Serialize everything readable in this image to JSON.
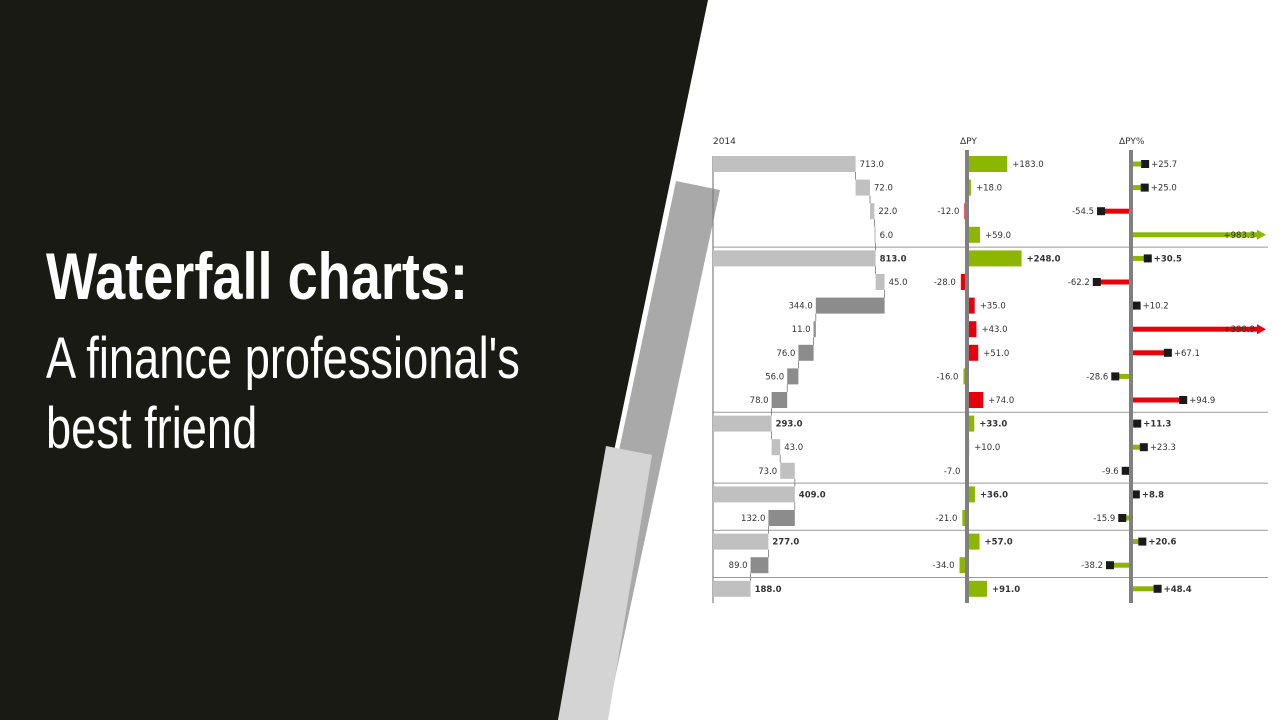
{
  "title": "Waterfall charts:",
  "subtitle_lines": [
    "A finance professional's",
    "best friend"
  ],
  "colors": {
    "dark_panel": "#1a1a14",
    "stripe_dark": "#a9a9a9",
    "stripe_light": "#d4d4d4",
    "positive": "#8db600",
    "negative": "#e8000b",
    "bar_light": "#c0c0c0",
    "bar_dark": "#8c8c8c",
    "axis": "#808080",
    "marker": "#1a1a1a"
  },
  "chart_data": {
    "type": "bar",
    "columns": [
      "2014",
      "ΔPY",
      "ΔPY%"
    ],
    "rows": [
      {
        "value": 713.0,
        "label": "713.0",
        "kind": "step",
        "start": 0,
        "end": 713,
        "shade": "light",
        "dpy": 183.0,
        "dpy_label": "+183.0",
        "dpct": 25.7,
        "dpct_label": "+25.7"
      },
      {
        "value": 72.0,
        "label": "72.0",
        "kind": "step",
        "start": 713,
        "end": 785,
        "shade": "light",
        "dpy": 18.0,
        "dpy_label": "+18.0",
        "dpct": 25.0,
        "dpct_label": "+25.0"
      },
      {
        "value": 22.0,
        "label": "22.0",
        "kind": "step",
        "start": 785,
        "end": 807,
        "shade": "light",
        "dpy": -12.0,
        "dpy_label": "-12.0",
        "dpct": -54.5,
        "dpct_label": "-54.5"
      },
      {
        "value": 6.0,
        "label": "6.0",
        "kind": "step",
        "start": 807,
        "end": 813,
        "shade": "light",
        "dpy": 59.0,
        "dpy_label": "+59.0",
        "dpct": 983.3,
        "dpct_label": "+983.3",
        "dpct_clipped": true
      },
      {
        "value": 813.0,
        "label": "813.0",
        "kind": "total",
        "start": 0,
        "end": 813,
        "shade": "light",
        "dpy": 248.0,
        "dpy_label": "+248.0",
        "dpct": 30.5,
        "dpct_label": "+30.5",
        "separator": true
      },
      {
        "value": 45.0,
        "label": "45.0",
        "kind": "step",
        "start": 813,
        "end": 858,
        "shade": "light",
        "dpy": -28.0,
        "dpy_label": "-28.0",
        "dpct": -62.2,
        "dpct_label": "-62.2"
      },
      {
        "value": 344.0,
        "label": "344.0",
        "kind": "step",
        "start": 858,
        "end": 514,
        "shade": "dark",
        "dpy": 35.0,
        "dpy_label": "+35.0",
        "dpct": 10.2,
        "dpct_label": "+10.2",
        "inverted": true
      },
      {
        "value": 11.0,
        "label": "11.0",
        "kind": "step",
        "start": 514,
        "end": 503,
        "shade": "dark",
        "dpy": 43.0,
        "dpy_label": "+43.0",
        "dpct": 390.9,
        "dpct_label": "+390.9",
        "inverted": true,
        "dpct_clipped": true
      },
      {
        "value": 76.0,
        "label": "76.0",
        "kind": "step",
        "start": 503,
        "end": 427,
        "shade": "dark",
        "dpy": 51.0,
        "dpy_label": "+51.0",
        "dpct": 67.1,
        "dpct_label": "+67.1",
        "inverted": true
      },
      {
        "value": 56.0,
        "label": "56.0",
        "kind": "step",
        "start": 427,
        "end": 371,
        "shade": "dark",
        "dpy": -16.0,
        "dpy_label": "-16.0",
        "dpct": -28.6,
        "dpct_label": "-28.6",
        "inverted": true
      },
      {
        "value": 78.0,
        "label": "78.0",
        "kind": "step",
        "start": 371,
        "end": 293,
        "shade": "dark",
        "dpy": 74.0,
        "dpy_label": "+74.0",
        "dpct": 94.9,
        "dpct_label": "+94.9",
        "inverted": true
      },
      {
        "value": 293.0,
        "label": "293.0",
        "kind": "total",
        "start": 0,
        "end": 293,
        "shade": "light",
        "dpy": 33.0,
        "dpy_label": "+33.0",
        "dpct": 11.3,
        "dpct_label": "+11.3",
        "separator": true
      },
      {
        "value": 43.0,
        "label": "43.0",
        "kind": "step",
        "start": 293,
        "end": 336,
        "shade": "light",
        "dpy": 10.0,
        "dpy_label": "+10.0",
        "dpct": 23.3,
        "dpct_label": "+23.3"
      },
      {
        "value": 73.0,
        "label": "73.0",
        "kind": "step",
        "start": 336,
        "end": 409,
        "shade": "light",
        "dpy": -7.0,
        "dpy_label": "-7.0",
        "dpct": -9.6,
        "dpct_label": "-9.6",
        "inverted": true
      },
      {
        "value": 409.0,
        "label": "409.0",
        "kind": "total",
        "start": 0,
        "end": 409,
        "shade": "light",
        "dpy": 36.0,
        "dpy_label": "+36.0",
        "dpct": 8.8,
        "dpct_label": "+8.8",
        "separator": true
      },
      {
        "value": 132.0,
        "label": "132.0",
        "kind": "step",
        "start": 409,
        "end": 277,
        "shade": "dark",
        "dpy": -21.0,
        "dpy_label": "-21.0",
        "dpct": -15.9,
        "dpct_label": "-15.9",
        "inverted": true
      },
      {
        "value": 277.0,
        "label": "277.0",
        "kind": "total",
        "start": 0,
        "end": 277,
        "shade": "light",
        "dpy": 57.0,
        "dpy_label": "+57.0",
        "dpct": 20.6,
        "dpct_label": "+20.6",
        "separator": true
      },
      {
        "value": 89.0,
        "label": "89.0",
        "kind": "step",
        "start": 277,
        "end": 188,
        "shade": "dark",
        "dpy": -34.0,
        "dpy_label": "-34.0",
        "dpct": -38.2,
        "dpct_label": "-38.2",
        "inverted": true
      },
      {
        "value": 188.0,
        "label": "188.0",
        "kind": "total",
        "start": 0,
        "end": 188,
        "shade": "light",
        "dpy": 91.0,
        "dpy_label": "+91.0",
        "dpct": 48.4,
        "dpct_label": "+48.4",
        "separator": true
      }
    ]
  }
}
